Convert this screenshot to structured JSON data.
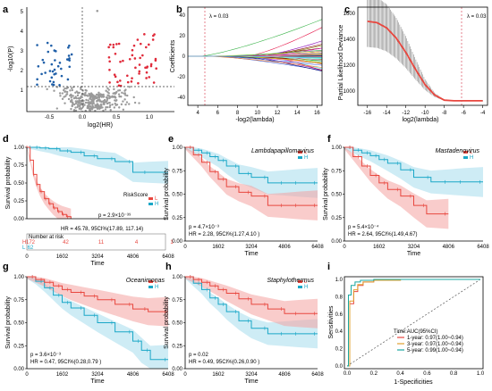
{
  "colors": {
    "high": "#e8473f",
    "low": "#1aa7c7",
    "gray": "#9a9a9a",
    "red_band": "#f4a3a0",
    "blue_band": "#a6dcec",
    "dashed": "#555555"
  },
  "panels": {
    "a": {
      "label": "a",
      "xlabel": "log2(HR)",
      "ylabel": "-log10(P)",
      "xticks": [
        "-0.5",
        "0.0",
        "0.5",
        "1.0"
      ],
      "yticks": [
        "1",
        "2",
        "3",
        "4",
        "5"
      ]
    },
    "b": {
      "label": "b",
      "xlabel": "-log2(lambda)",
      "ylabel": "Coefficients",
      "lambda_label": "λ = 0.03",
      "xticks": [
        "4",
        "6",
        "8",
        "10",
        "12",
        "14",
        "16"
      ],
      "yticks": [
        "-40",
        "-20",
        "0",
        "20",
        "40"
      ]
    },
    "c": {
      "label": "c",
      "xlabel": "log2(lambda)",
      "ylabel": "Partial Likelihood Deviance",
      "lambda_label": "λ = 0.03",
      "xticks": [
        "-16",
        "-14",
        "-12",
        "-10",
        "-8",
        "-6",
        "-4"
      ],
      "yticks": [
        "1000",
        "1200",
        "1400",
        "1600"
      ]
    },
    "d": {
      "label": "d",
      "ylabel": "Survival probability",
      "xlabel": "Time",
      "legend_title": "RiskScore",
      "legend_h": "H",
      "legend_l": "L",
      "pval": "p = 2.9×10⁻³⁹",
      "hr": "HR = 45.78, 95CI%(17.89, 117.14)",
      "risk_title": "Number at risk",
      "risk_h": [
        "172",
        "42",
        "11",
        "4",
        "1"
      ],
      "risk_l": [
        "62",
        "",
        "",
        "",
        ""
      ],
      "xticks": [
        "0",
        "1602",
        "3204",
        "4806",
        "6408"
      ],
      "yticks": [
        "0.00",
        "0.25",
        "0.50",
        "0.75",
        "1.00"
      ]
    },
    "e": {
      "label": "e",
      "title": "Lambdapapillomavirus",
      "ylabel": "Survival probability",
      "xlabel": "Time",
      "legend_h": "H",
      "legend_l": "L",
      "pval": "p = 4.7×10⁻³",
      "hr": "HR = 2.28, 95CI%(1.27,4.10 )",
      "xticks": [
        "0",
        "1602",
        "3204",
        "4806",
        "6408"
      ],
      "yticks": [
        "0.00",
        "0.25",
        "0.50",
        "0.75",
        "1.00"
      ]
    },
    "f": {
      "label": "f",
      "title": "Mastadenovirus",
      "ylabel": "Survival probability",
      "xlabel": "Time",
      "legend_h": "H",
      "legend_l": "L",
      "pval": "p = 5.4×10⁻⁴",
      "hr": "HR = 2.64, 95CI%(1.49,4.67)",
      "xticks": [
        "0",
        "1602",
        "3204",
        "4806",
        "6408"
      ],
      "yticks": [
        "0.00",
        "0.25",
        "0.50",
        "0.75",
        "1.00"
      ]
    },
    "g": {
      "label": "g",
      "title": "Oceanimonas",
      "ylabel": "Survival probability",
      "xlabel": "Time",
      "legend_h": "H",
      "legend_l": "L",
      "pval": "p = 3.6×10⁻³",
      "hr": "HR = 0.47, 95CI%(0.28,0.79 )",
      "xticks": [
        "0",
        "1602",
        "3204",
        "4806",
        "6408"
      ],
      "yticks": [
        "0.00",
        "0.25",
        "0.50",
        "0.75",
        "1.00"
      ]
    },
    "h": {
      "label": "h",
      "title": "Staphylothermus",
      "ylabel": "Survival probability",
      "xlabel": "Time",
      "legend_h": "H",
      "legend_l": "L",
      "pval": "p = 0.02",
      "hr": "HR = 0.49, 95CI%(0.26,0.90 )",
      "xticks": [
        "0",
        "1602",
        "3204",
        "4806",
        "6408"
      ],
      "yticks": [
        "0.00",
        "0.25",
        "0.50",
        "0.75",
        "1.00"
      ]
    },
    "i": {
      "label": "i",
      "xlabel": "1-Specificities",
      "ylabel": "Sensitivities",
      "legend_title": "Time:AUC(95%CI)",
      "legend": [
        "1-year: 0.97(1.00~0.94)",
        "3-year: 0.97(1.00~0.94)",
        "5-year: 0.99(1.00~0.94)"
      ],
      "legend_colors": [
        "#e8473f",
        "#e0a030",
        "#1aa7a0"
      ],
      "xticks": [
        "0.0",
        "0.2",
        "0.4",
        "0.6",
        "0.8",
        "1.0"
      ],
      "yticks": [
        "0.0",
        "0.2",
        "0.4",
        "0.6",
        "0.8",
        "1.0"
      ]
    }
  },
  "chart_data": [
    {
      "panel": "d",
      "type": "line",
      "series": [
        {
          "name": "L",
          "x": [
            0,
            300,
            600,
            1000,
            1500,
            2000,
            2600,
            3200,
            4000,
            4806,
            5500,
            6408
          ],
          "y": [
            1.0,
            1.0,
            0.99,
            0.98,
            0.95,
            0.93,
            0.88,
            0.84,
            0.8,
            0.65,
            0.65,
            0.65
          ]
        },
        {
          "name": "H",
          "x": [
            0,
            150,
            300,
            450,
            600,
            800,
            1000,
            1200,
            1400,
            1602,
            1800,
            2000
          ],
          "y": [
            1.0,
            0.82,
            0.62,
            0.48,
            0.38,
            0.28,
            0.21,
            0.15,
            0.1,
            0.06,
            0.03,
            0.0
          ]
        }
      ],
      "ylim": [
        0,
        1
      ],
      "xlim": [
        0,
        6408
      ]
    },
    {
      "panel": "e",
      "type": "line",
      "series": [
        {
          "name": "L",
          "x": [
            0,
            400,
            800,
            1200,
            1602,
            2000,
            2600,
            3204,
            4000,
            4806,
            5500,
            6408
          ],
          "y": [
            1.0,
            0.97,
            0.94,
            0.9,
            0.86,
            0.8,
            0.72,
            0.68,
            0.62,
            0.62,
            0.62,
            0.62
          ]
        },
        {
          "name": "H",
          "x": [
            0,
            400,
            800,
            1200,
            1602,
            2000,
            2600,
            3204,
            4000,
            4806,
            5500,
            6408
          ],
          "y": [
            1.0,
            0.92,
            0.84,
            0.74,
            0.66,
            0.58,
            0.52,
            0.48,
            0.38,
            0.38,
            0.38,
            0.38
          ]
        }
      ],
      "ylim": [
        0,
        1
      ],
      "xlim": [
        0,
        6408
      ]
    },
    {
      "panel": "f",
      "type": "line",
      "series": [
        {
          "name": "L",
          "x": [
            0,
            400,
            800,
            1200,
            1602,
            2000,
            2600,
            3204,
            4000,
            4806,
            5500,
            6408
          ],
          "y": [
            1.0,
            0.97,
            0.94,
            0.91,
            0.87,
            0.83,
            0.76,
            0.68,
            0.63,
            0.63,
            0.63,
            0.63
          ]
        },
        {
          "name": "H",
          "x": [
            0,
            400,
            800,
            1200,
            1602,
            2000,
            2600,
            3204,
            3800,
            4806
          ],
          "y": [
            1.0,
            0.9,
            0.8,
            0.7,
            0.62,
            0.55,
            0.48,
            0.38,
            0.29,
            0.29
          ]
        }
      ],
      "ylim": [
        0,
        1
      ],
      "xlim": [
        0,
        6408
      ]
    },
    {
      "panel": "g",
      "type": "line",
      "series": [
        {
          "name": "L",
          "x": [
            0,
            400,
            800,
            1200,
            1602,
            2000,
            2600,
            3204,
            4000,
            4806,
            5200,
            5600,
            6408
          ],
          "y": [
            1.0,
            0.95,
            0.88,
            0.8,
            0.72,
            0.66,
            0.58,
            0.5,
            0.4,
            0.3,
            0.2,
            0.1,
            0.1
          ]
        },
        {
          "name": "H",
          "x": [
            0,
            400,
            800,
            1200,
            1602,
            2000,
            2600,
            3204,
            4000,
            4806,
            5500,
            6408
          ],
          "y": [
            1.0,
            0.97,
            0.94,
            0.9,
            0.86,
            0.83,
            0.79,
            0.75,
            0.7,
            0.65,
            0.62,
            0.62
          ]
        }
      ],
      "ylim": [
        0,
        1
      ],
      "xlim": [
        0,
        6408
      ]
    },
    {
      "panel": "h",
      "type": "line",
      "series": [
        {
          "name": "L",
          "x": [
            0,
            400,
            800,
            1200,
            1602,
            2000,
            2600,
            3204,
            4000,
            4806,
            5500,
            6408
          ],
          "y": [
            1.0,
            0.93,
            0.86,
            0.77,
            0.7,
            0.62,
            0.52,
            0.44,
            0.38,
            0.38,
            0.38,
            0.38
          ]
        },
        {
          "name": "H",
          "x": [
            0,
            400,
            800,
            1200,
            1602,
            2000,
            2600,
            3204,
            4000,
            4806,
            5500,
            6408
          ],
          "y": [
            1.0,
            0.97,
            0.94,
            0.9,
            0.86,
            0.82,
            0.76,
            0.7,
            0.65,
            0.6,
            0.6,
            0.6
          ]
        }
      ],
      "ylim": [
        0,
        1
      ],
      "xlim": [
        0,
        6408
      ]
    },
    {
      "panel": "i",
      "type": "line",
      "series": [
        {
          "name": "1-year",
          "x": [
            0,
            0.02,
            0.05,
            0.08,
            0.12,
            0.2,
            0.4,
            0.7,
            1.0
          ],
          "y": [
            0,
            0.72,
            0.86,
            0.93,
            0.97,
            0.99,
            1.0,
            1.0,
            1.0
          ]
        },
        {
          "name": "3-year",
          "x": [
            0,
            0.02,
            0.05,
            0.08,
            0.12,
            0.2,
            0.4,
            0.7,
            1.0
          ],
          "y": [
            0,
            0.75,
            0.88,
            0.94,
            0.97,
            0.99,
            1.0,
            1.0,
            1.0
          ]
        },
        {
          "name": "5-year",
          "x": [
            0,
            0.01,
            0.03,
            0.06,
            0.1,
            0.2,
            0.4,
            0.7,
            1.0
          ],
          "y": [
            0,
            0.82,
            0.93,
            0.97,
            0.99,
            1.0,
            1.0,
            1.0,
            1.0
          ]
        }
      ],
      "xlim": [
        0,
        1
      ],
      "ylim": [
        0,
        1
      ]
    },
    {
      "panel": "c",
      "type": "line",
      "series": [
        {
          "name": "deviance",
          "x": [
            -16,
            -15,
            -14,
            -13,
            -12,
            -11,
            -10,
            -9,
            -8,
            -7,
            -6,
            -5,
            -4
          ],
          "y": [
            1570,
            1560,
            1520,
            1440,
            1330,
            1200,
            1080,
            1000,
            960,
            955,
            955,
            955,
            955
          ]
        }
      ],
      "xlim": [
        -16,
        -4
      ],
      "ylim": [
        920,
        1680
      ]
    },
    {
      "panel": "a",
      "type": "scatter",
      "xlim": [
        -1.0,
        1.2
      ],
      "ylim": [
        0,
        5.5
      ]
    },
    {
      "panel": "b",
      "type": "line",
      "xlim": [
        3,
        16.5
      ],
      "ylim": [
        -50,
        50
      ]
    }
  ]
}
